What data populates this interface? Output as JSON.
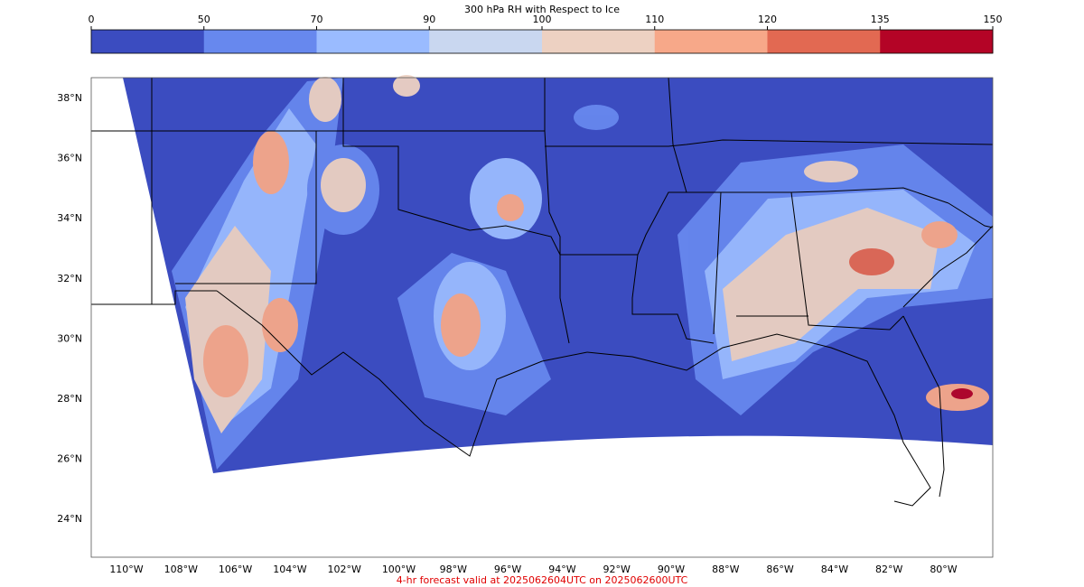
{
  "colorbar": {
    "title": "300 hPa RH with Respect to Ice",
    "ticks": [
      0,
      50,
      70,
      90,
      100,
      110,
      120,
      135,
      150
    ],
    "colors": [
      "#3b4cc0",
      "#6788ee",
      "#9abbff",
      "#c9d7f0",
      "#edd1c2",
      "#f7a889",
      "#e26952",
      "#b40426"
    ]
  },
  "map": {
    "lat_labels": [
      "38°N",
      "36°N",
      "34°N",
      "32°N",
      "30°N",
      "28°N",
      "26°N",
      "24°N"
    ],
    "lon_labels": [
      "110°W",
      "108°W",
      "106°W",
      "104°W",
      "102°W",
      "100°W",
      "98°W",
      "96°W",
      "94°W",
      "92°W",
      "90°W",
      "88°W",
      "86°W",
      "84°W",
      "82°W",
      "80°W"
    ]
  },
  "footer": "4-hr forecast valid at 2025062604UTC on 2025062600UTC"
}
